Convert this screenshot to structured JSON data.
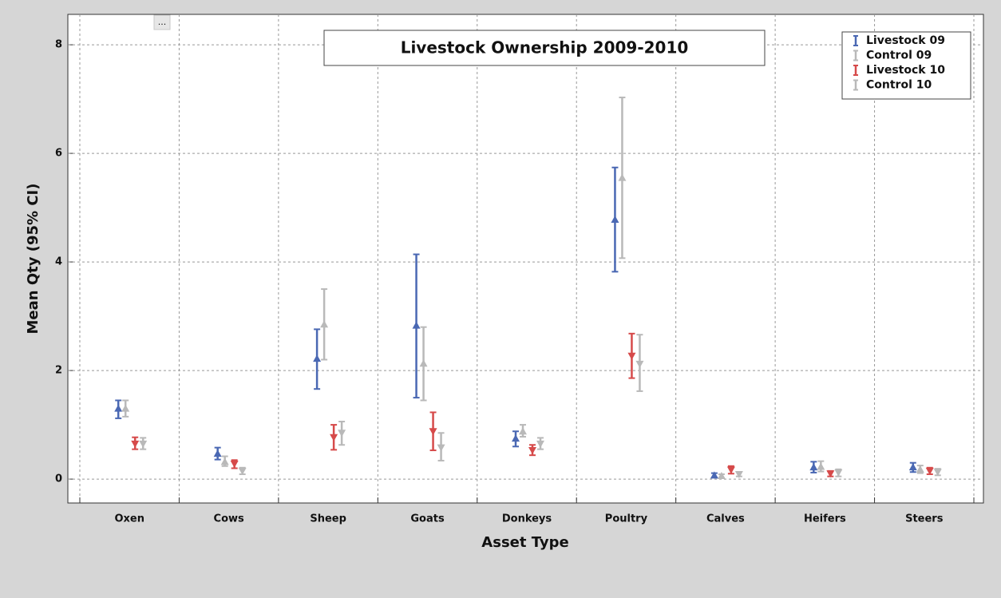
{
  "toolbar_button": "...",
  "chart_data": {
    "type": "errorbar",
    "title": "Livestock Ownership 2009-2010",
    "x_label": "Asset Type",
    "y_label": "Mean Qty (95% CI)",
    "categories": [
      "Oxen",
      "Cows",
      "Sheep",
      "Goats",
      "Donkeys",
      "Poultry",
      "Calves",
      "Heifers",
      "Steers"
    ],
    "ylim": [
      -0.44,
      8.56
    ],
    "yticks": [
      0,
      2,
      4,
      6,
      8
    ],
    "grid": true,
    "legend": "top-right",
    "series": [
      {
        "name": "Livestock 09",
        "color": "#4a68b3",
        "marker": "triangle-up",
        "values": [
          1.3,
          0.47,
          2.22,
          2.83,
          0.75,
          4.78,
          0.07,
          0.22,
          0.22
        ],
        "lower": [
          1.12,
          0.36,
          1.66,
          1.5,
          0.6,
          3.82,
          0.03,
          0.12,
          0.13
        ],
        "upper": [
          1.45,
          0.58,
          2.76,
          4.14,
          0.88,
          5.74,
          0.11,
          0.32,
          0.3
        ]
      },
      {
        "name": "Control 09",
        "color": "#b9b9b9",
        "marker": "triangle-up",
        "values": [
          1.3,
          0.32,
          2.85,
          2.13,
          0.88,
          5.55,
          0.06,
          0.23,
          0.18
        ],
        "lower": [
          1.15,
          0.24,
          2.2,
          1.45,
          0.78,
          4.07,
          0.02,
          0.14,
          0.11
        ],
        "upper": [
          1.45,
          0.42,
          3.5,
          2.8,
          1.0,
          7.03,
          0.09,
          0.33,
          0.25
        ]
      },
      {
        "name": "Livestock 10",
        "color": "#d64a4a",
        "marker": "triangle-down",
        "values": [
          0.65,
          0.28,
          0.77,
          0.88,
          0.53,
          2.27,
          0.17,
          0.1,
          0.15
        ],
        "lower": [
          0.55,
          0.2,
          0.54,
          0.53,
          0.44,
          1.86,
          0.1,
          0.05,
          0.09
        ],
        "upper": [
          0.77,
          0.35,
          1.0,
          1.23,
          0.63,
          2.68,
          0.24,
          0.15,
          0.21
        ]
      },
      {
        "name": "Control 10",
        "color": "#b9b9b9",
        "marker": "triangle-down",
        "values": [
          0.65,
          0.15,
          0.85,
          0.58,
          0.65,
          2.12,
          0.09,
          0.12,
          0.13
        ],
        "lower": [
          0.55,
          0.09,
          0.63,
          0.34,
          0.55,
          1.62,
          0.05,
          0.05,
          0.07
        ],
        "upper": [
          0.76,
          0.21,
          1.06,
          0.85,
          0.76,
          2.66,
          0.13,
          0.18,
          0.19
        ]
      }
    ]
  }
}
